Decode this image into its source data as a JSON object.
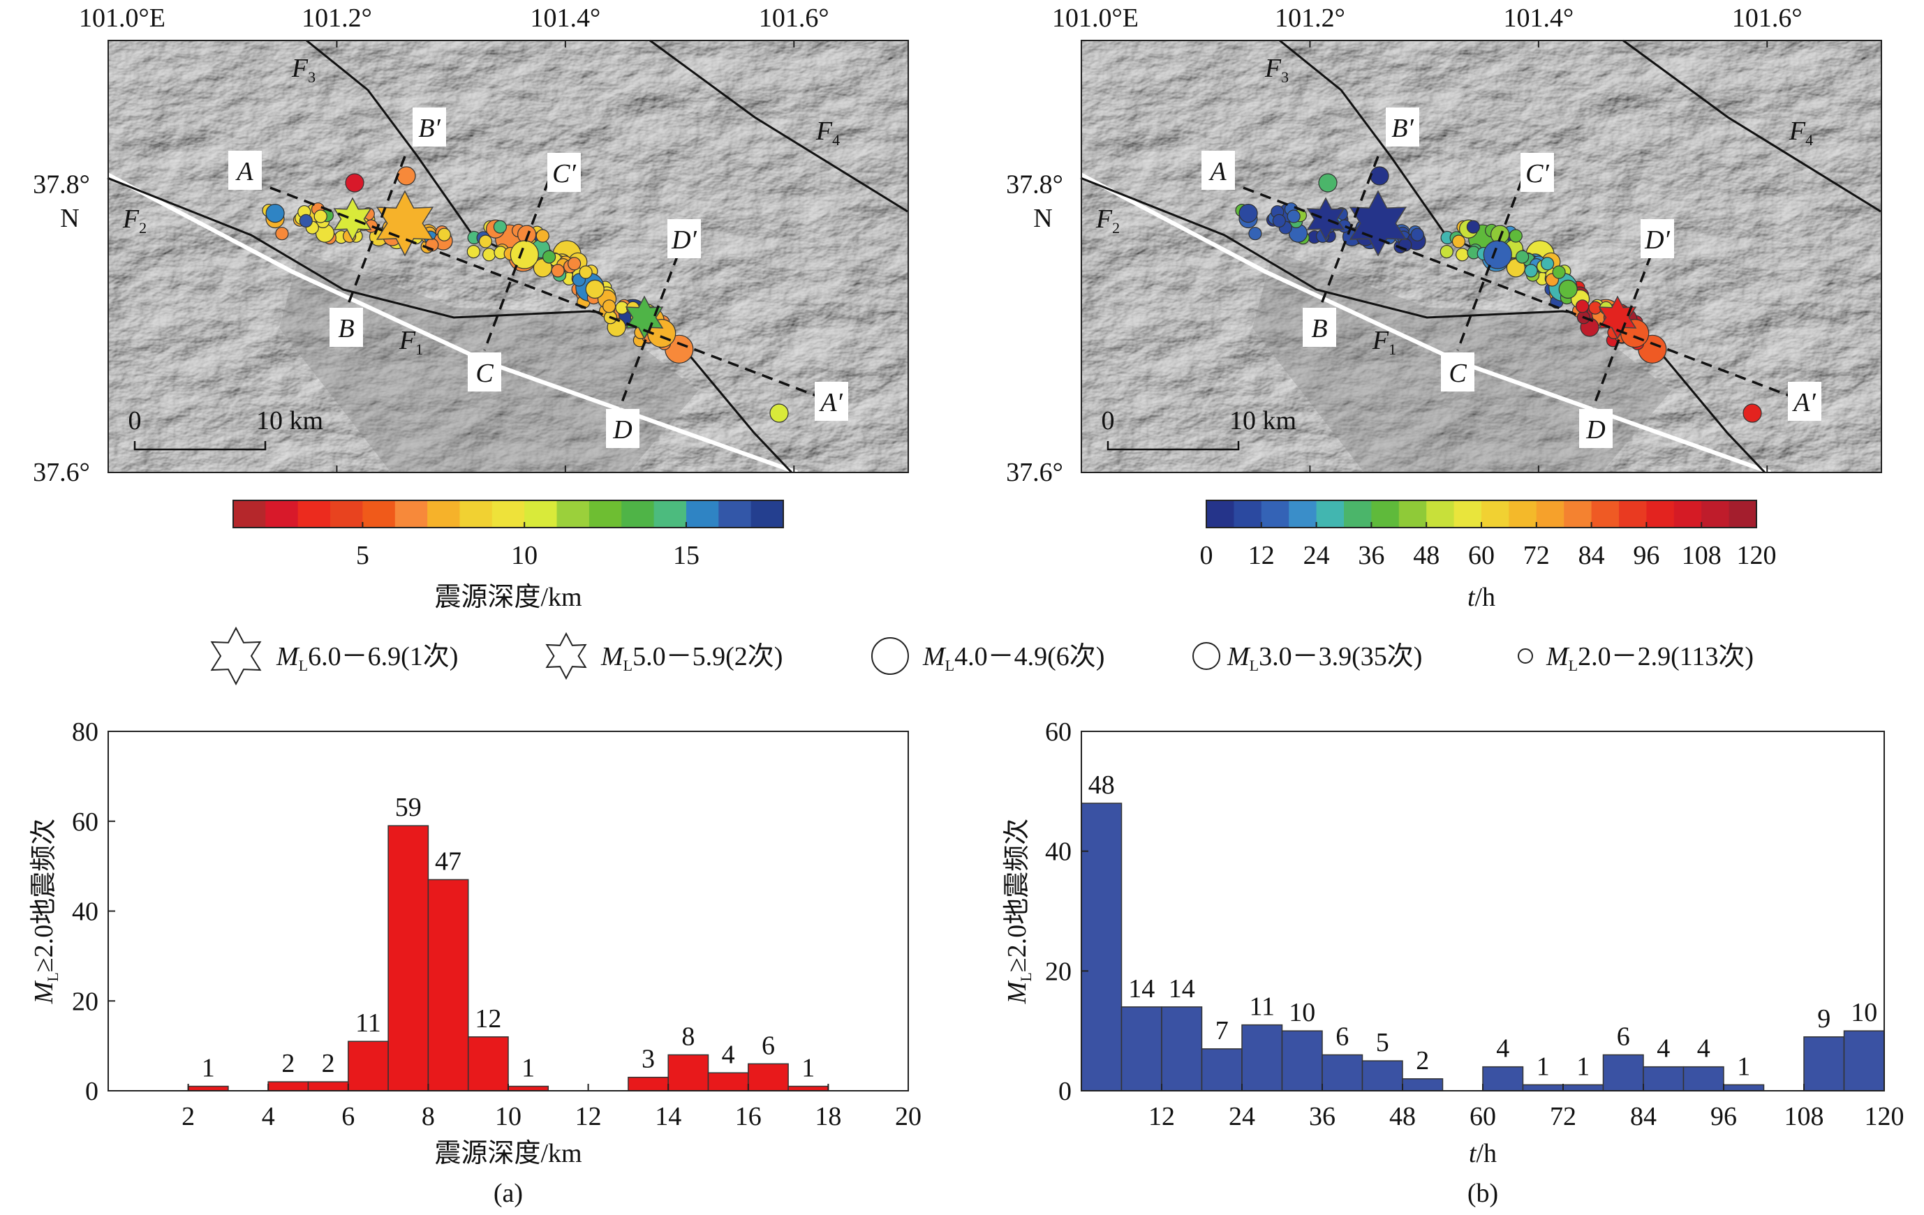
{
  "maps": [
    {
      "id": "depth",
      "colorbar": {
        "title": "震源深度/km",
        "ticks": [
          "5",
          "10",
          "15"
        ],
        "tick_values": [
          5,
          10,
          15
        ],
        "range": [
          1,
          18
        ],
        "segments": 17,
        "colors": [
          "#b5272b",
          "#d8192a",
          "#ec2b1e",
          "#e8431f",
          "#f05a1a",
          "#f7893a",
          "#f6b22a",
          "#f1d132",
          "#eee23a",
          "#d9ea3a",
          "#9bd03b",
          "#6ebe32",
          "#4fb447",
          "#4cbb7e",
          "#2f84c4",
          "#3357a8",
          "#243f8f"
        ]
      }
    },
    {
      "id": "time",
      "colorbar": {
        "title_italic": "t",
        "title_rest": "/h",
        "ticks": [
          "0",
          "12",
          "24",
          "36",
          "48",
          "60",
          "72",
          "84",
          "96",
          "108",
          "120"
        ],
        "tick_values": [
          0,
          12,
          24,
          36,
          48,
          60,
          72,
          84,
          96,
          108,
          120
        ],
        "range": [
          0,
          120
        ],
        "segments": 20,
        "colors": [
          "#25348a",
          "#2b49a0",
          "#3463b6",
          "#3a8ec9",
          "#42b6b0",
          "#4bb56a",
          "#5fba3b",
          "#8fca38",
          "#c8e03a",
          "#e9e53c",
          "#f1d132",
          "#f4b92a",
          "#f6a12b",
          "#f48230",
          "#ef5a24",
          "#e93a21",
          "#e3231f",
          "#d51b25",
          "#bf1c2b",
          "#a41e2d"
        ]
      }
    }
  ],
  "map_axes": {
    "lon_labels": [
      "101.0°E",
      "101.2°",
      "101.4°",
      "101.6°"
    ],
    "lon_values": [
      101.0,
      101.2,
      101.4,
      101.6
    ],
    "lat_labels": [
      "37.8°",
      "37.6°"
    ],
    "lat_values": [
      37.8,
      37.6
    ],
    "lat_hemisphere": "N",
    "extent": {
      "lon": [
        101.0,
        101.7
      ],
      "lat": [
        37.6,
        37.9
      ]
    }
  },
  "map_labels": {
    "profiles": [
      "A",
      "A′",
      "B",
      "B′",
      "C",
      "C′",
      "D",
      "D′"
    ],
    "faults": [
      {
        "main": "F",
        "sub": "1"
      },
      {
        "main": "F",
        "sub": "2"
      },
      {
        "main": "F",
        "sub": "3"
      },
      {
        "main": "F",
        "sub": "4"
      }
    ],
    "scale_zero": "0",
    "scale_label": "10 km"
  },
  "legend": [
    {
      "symbol": "star-large",
      "m": "M",
      "sub": "L",
      "text": "6.0－6.9(1次)"
    },
    {
      "symbol": "star-medium",
      "m": "M",
      "sub": "L",
      "text": "5.0－5.9(2次)"
    },
    {
      "symbol": "circle-large",
      "m": "M",
      "sub": "L",
      "text": "4.0－4.9(6次)"
    },
    {
      "symbol": "circle-medium",
      "m": "M",
      "sub": "L",
      "text": "3.0－3.9(35次)"
    },
    {
      "symbol": "circle-small",
      "m": "M",
      "sub": "L",
      "text": "2.0－2.9(113次)"
    }
  ],
  "chart_data": [
    {
      "type": "bar",
      "panel": "(a)",
      "xlabel": "震源深度/km",
      "ylabel_m": "M",
      "ylabel_sub": "L",
      "ylabel_rest": "≥2.0地震频次",
      "xlim": [
        0,
        20
      ],
      "ylim": [
        0,
        80
      ],
      "xticks": [
        2,
        4,
        6,
        8,
        10,
        12,
        14,
        16,
        18,
        20
      ],
      "yticks": [
        0,
        20,
        40,
        60,
        80
      ],
      "bar_color": "#e8191b",
      "bins": [
        [
          2,
          3
        ],
        [
          4,
          5
        ],
        [
          5,
          6
        ],
        [
          6,
          7
        ],
        [
          7,
          8
        ],
        [
          8,
          9
        ],
        [
          9,
          10
        ],
        [
          10,
          11
        ],
        [
          13,
          14
        ],
        [
          14,
          15
        ],
        [
          15,
          16
        ],
        [
          16,
          17
        ],
        [
          17,
          18
        ]
      ],
      "values": [
        1,
        2,
        2,
        11,
        59,
        47,
        12,
        1,
        3,
        8,
        4,
        6,
        1
      ]
    },
    {
      "type": "bar",
      "panel": "(b)",
      "xlabel_italic": "t",
      "xlabel_rest": "/h",
      "ylabel_m": "M",
      "ylabel_sub": "L",
      "ylabel_rest": "≥2.0地震频次",
      "xlim": [
        0,
        120
      ],
      "ylim": [
        0,
        60
      ],
      "xticks": [
        12,
        24,
        36,
        48,
        60,
        72,
        84,
        96,
        108,
        120
      ],
      "yticks": [
        0,
        20,
        40,
        60
      ],
      "bar_color": "#3a52a3",
      "bins": [
        [
          0,
          6
        ],
        [
          6,
          12
        ],
        [
          12,
          18
        ],
        [
          18,
          24
        ],
        [
          24,
          30
        ],
        [
          30,
          36
        ],
        [
          36,
          42
        ],
        [
          42,
          48
        ],
        [
          48,
          54
        ],
        [
          60,
          66
        ],
        [
          66,
          72
        ],
        [
          72,
          78
        ],
        [
          78,
          84
        ],
        [
          84,
          90
        ],
        [
          90,
          96
        ],
        [
          96,
          102
        ],
        [
          108,
          114
        ],
        [
          114,
          120
        ]
      ],
      "values": [
        48,
        14,
        14,
        7,
        11,
        10,
        6,
        5,
        2,
        4,
        1,
        1,
        6,
        4,
        4,
        1,
        9,
        10
      ]
    }
  ]
}
